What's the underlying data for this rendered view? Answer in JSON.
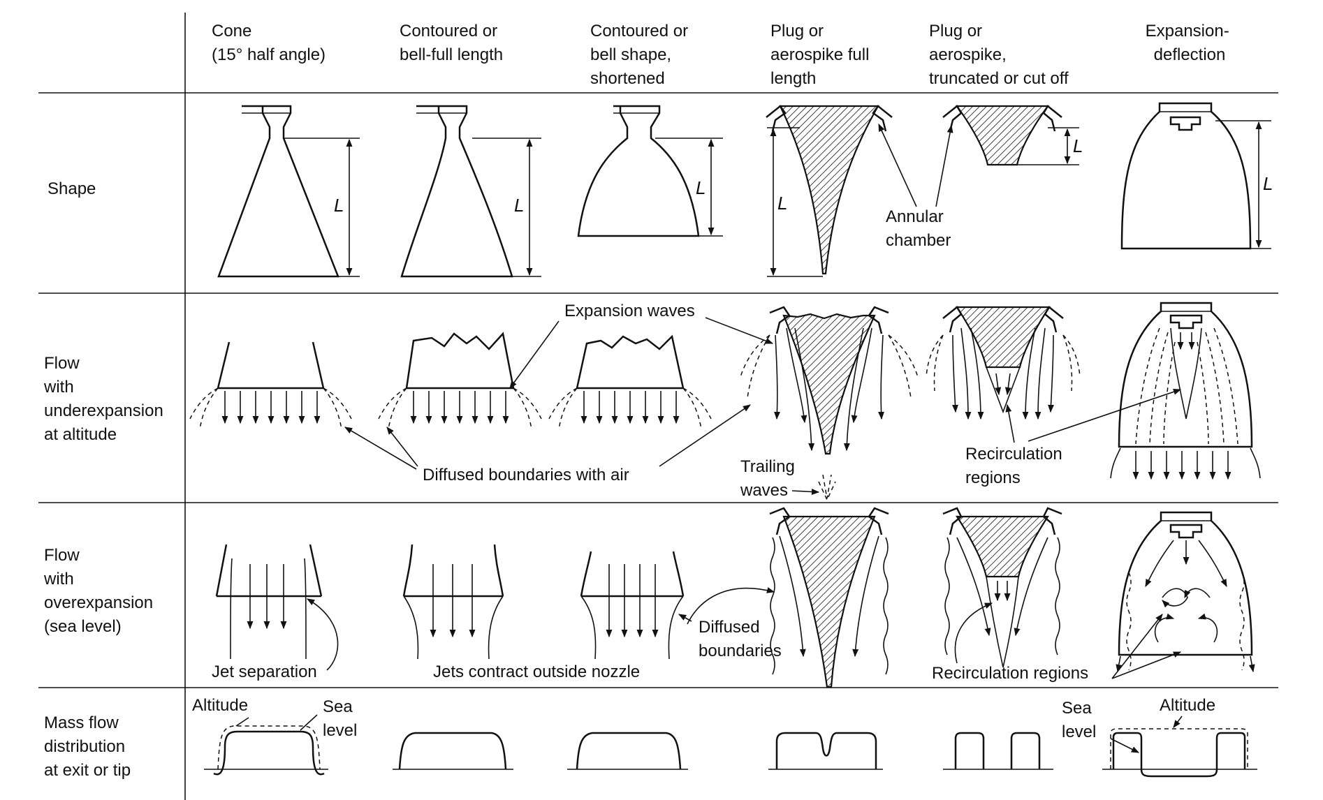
{
  "columns": [
    [
      "Cone",
      "(15° half angle)"
    ],
    [
      "Contoured or",
      "bell-full length"
    ],
    [
      "Contoured or",
      "bell shape,",
      "shortened"
    ],
    [
      "Plug or",
      "aerospike full",
      "length"
    ],
    [
      "Plug or",
      "aerospike,",
      "truncated or cut off"
    ],
    [
      "Expansion-",
      "deflection"
    ]
  ],
  "rows": [
    [
      "Shape"
    ],
    [
      "Flow",
      "with",
      "underexpansion",
      "at altitude"
    ],
    [
      "Flow",
      "with",
      "overexpansion",
      "(sea level)"
    ],
    [
      "Mass flow",
      "distribution",
      "at exit or tip"
    ]
  ],
  "labels": {
    "length": "L",
    "annular": [
      "Annular",
      "chamber"
    ],
    "expansion_waves": "Expansion waves",
    "diffused_air": "Diffused boundaries with air",
    "trailing": [
      "Trailing",
      "waves"
    ],
    "recirc_under": [
      "Recirculation",
      "regions"
    ],
    "jet_separation": "Jet separation",
    "jets_contract": "Jets contract outside nozzle",
    "diffused_boundaries": [
      "Diffused",
      "boundaries"
    ],
    "recirc_over": "Recirculation regions",
    "altitude": "Altitude",
    "sea_level": [
      "Sea",
      "level"
    ]
  }
}
